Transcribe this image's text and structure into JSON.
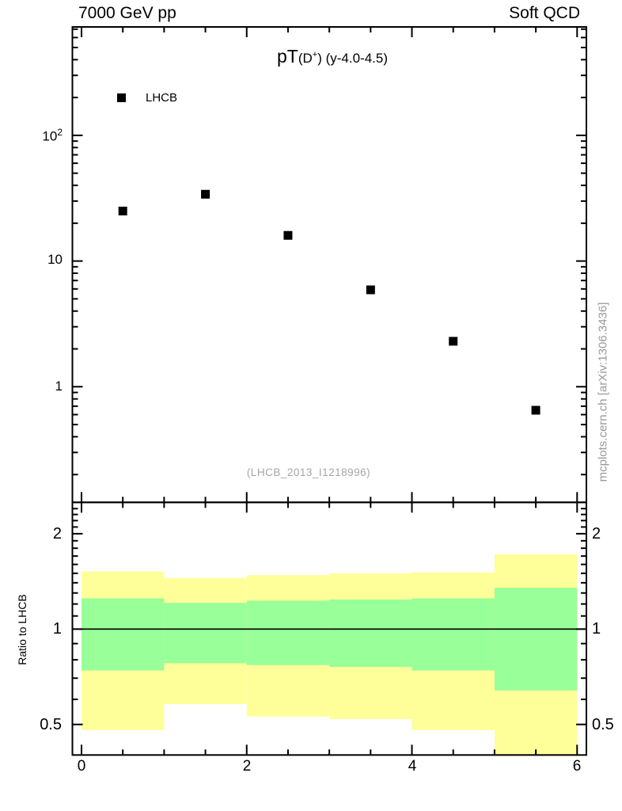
{
  "header": {
    "beam": "7000 GeV pp",
    "process_group": "Soft QCD"
  },
  "title": {
    "observable": "pT",
    "particle_open": "(D",
    "charge_sup": "+",
    "rest": ") (y-4.0-4.5)"
  },
  "legend": {
    "entry": "LHCB"
  },
  "watermark": "(LHCB_2013_I1218996)",
  "side_note": "mcplots.cern.ch [arXiv:1306.3436]",
  "axis_labels": {
    "top_y": {
      "e2_base": "10",
      "e2_exp": "2",
      "e1": "10",
      "e0": "1"
    },
    "ratio_y": {
      "r2": "2",
      "r1": "1",
      "r05": "0.5"
    },
    "x": {
      "t0": "0",
      "t2": "2",
      "t4": "4",
      "t6": "6"
    }
  },
  "chart_data": {
    "type": "scatter",
    "title": "pT(D+) (y-4.0-4.5)",
    "header_left": "7000 GeV pp",
    "header_right": "Soft QCD",
    "x_range": [
      -0.11,
      6.11
    ],
    "x_major_ticks": [
      0,
      2,
      4,
      6
    ],
    "x_minor_step": 0.5,
    "top_panel": {
      "yscale": "log",
      "y_range": [
        0.12,
        728
      ],
      "y_major_ticks": [
        1,
        10,
        100
      ],
      "series": [
        {
          "name": "LHCB",
          "marker": "filled-square",
          "color": "#000000",
          "x": [
            0.5,
            1.5,
            2.5,
            3.5,
            4.5,
            5.5
          ],
          "y": [
            25,
            34,
            16,
            5.9,
            2.3,
            0.65
          ]
        }
      ]
    },
    "ratio_panel": {
      "ylabel": "Ratio to LHCB",
      "yscale": "log",
      "y_range": [
        0.4,
        2.51
      ],
      "y_major_ticks": [
        0.5,
        1,
        2
      ],
      "reference_line": 1,
      "outer_band_color": "#ffff99",
      "inner_band_color": "#99ff99",
      "bands": [
        {
          "x": [
            0,
            1
          ],
          "outer": [
            0.48,
            1.52
          ],
          "inner": [
            0.74,
            1.25
          ]
        },
        {
          "x": [
            1,
            2
          ],
          "outer": [
            0.58,
            1.45
          ],
          "inner": [
            0.78,
            1.21
          ]
        },
        {
          "x": [
            2,
            3
          ],
          "outer": [
            0.53,
            1.48
          ],
          "inner": [
            0.77,
            1.23
          ]
        },
        {
          "x": [
            3,
            4
          ],
          "outer": [
            0.52,
            1.5
          ],
          "inner": [
            0.76,
            1.24
          ]
        },
        {
          "x": [
            4,
            5
          ],
          "outer": [
            0.48,
            1.51
          ],
          "inner": [
            0.74,
            1.25
          ]
        },
        {
          "x": [
            5,
            6
          ],
          "outer": [
            0.29,
            1.72
          ],
          "inner": [
            0.64,
            1.35
          ]
        }
      ]
    }
  }
}
